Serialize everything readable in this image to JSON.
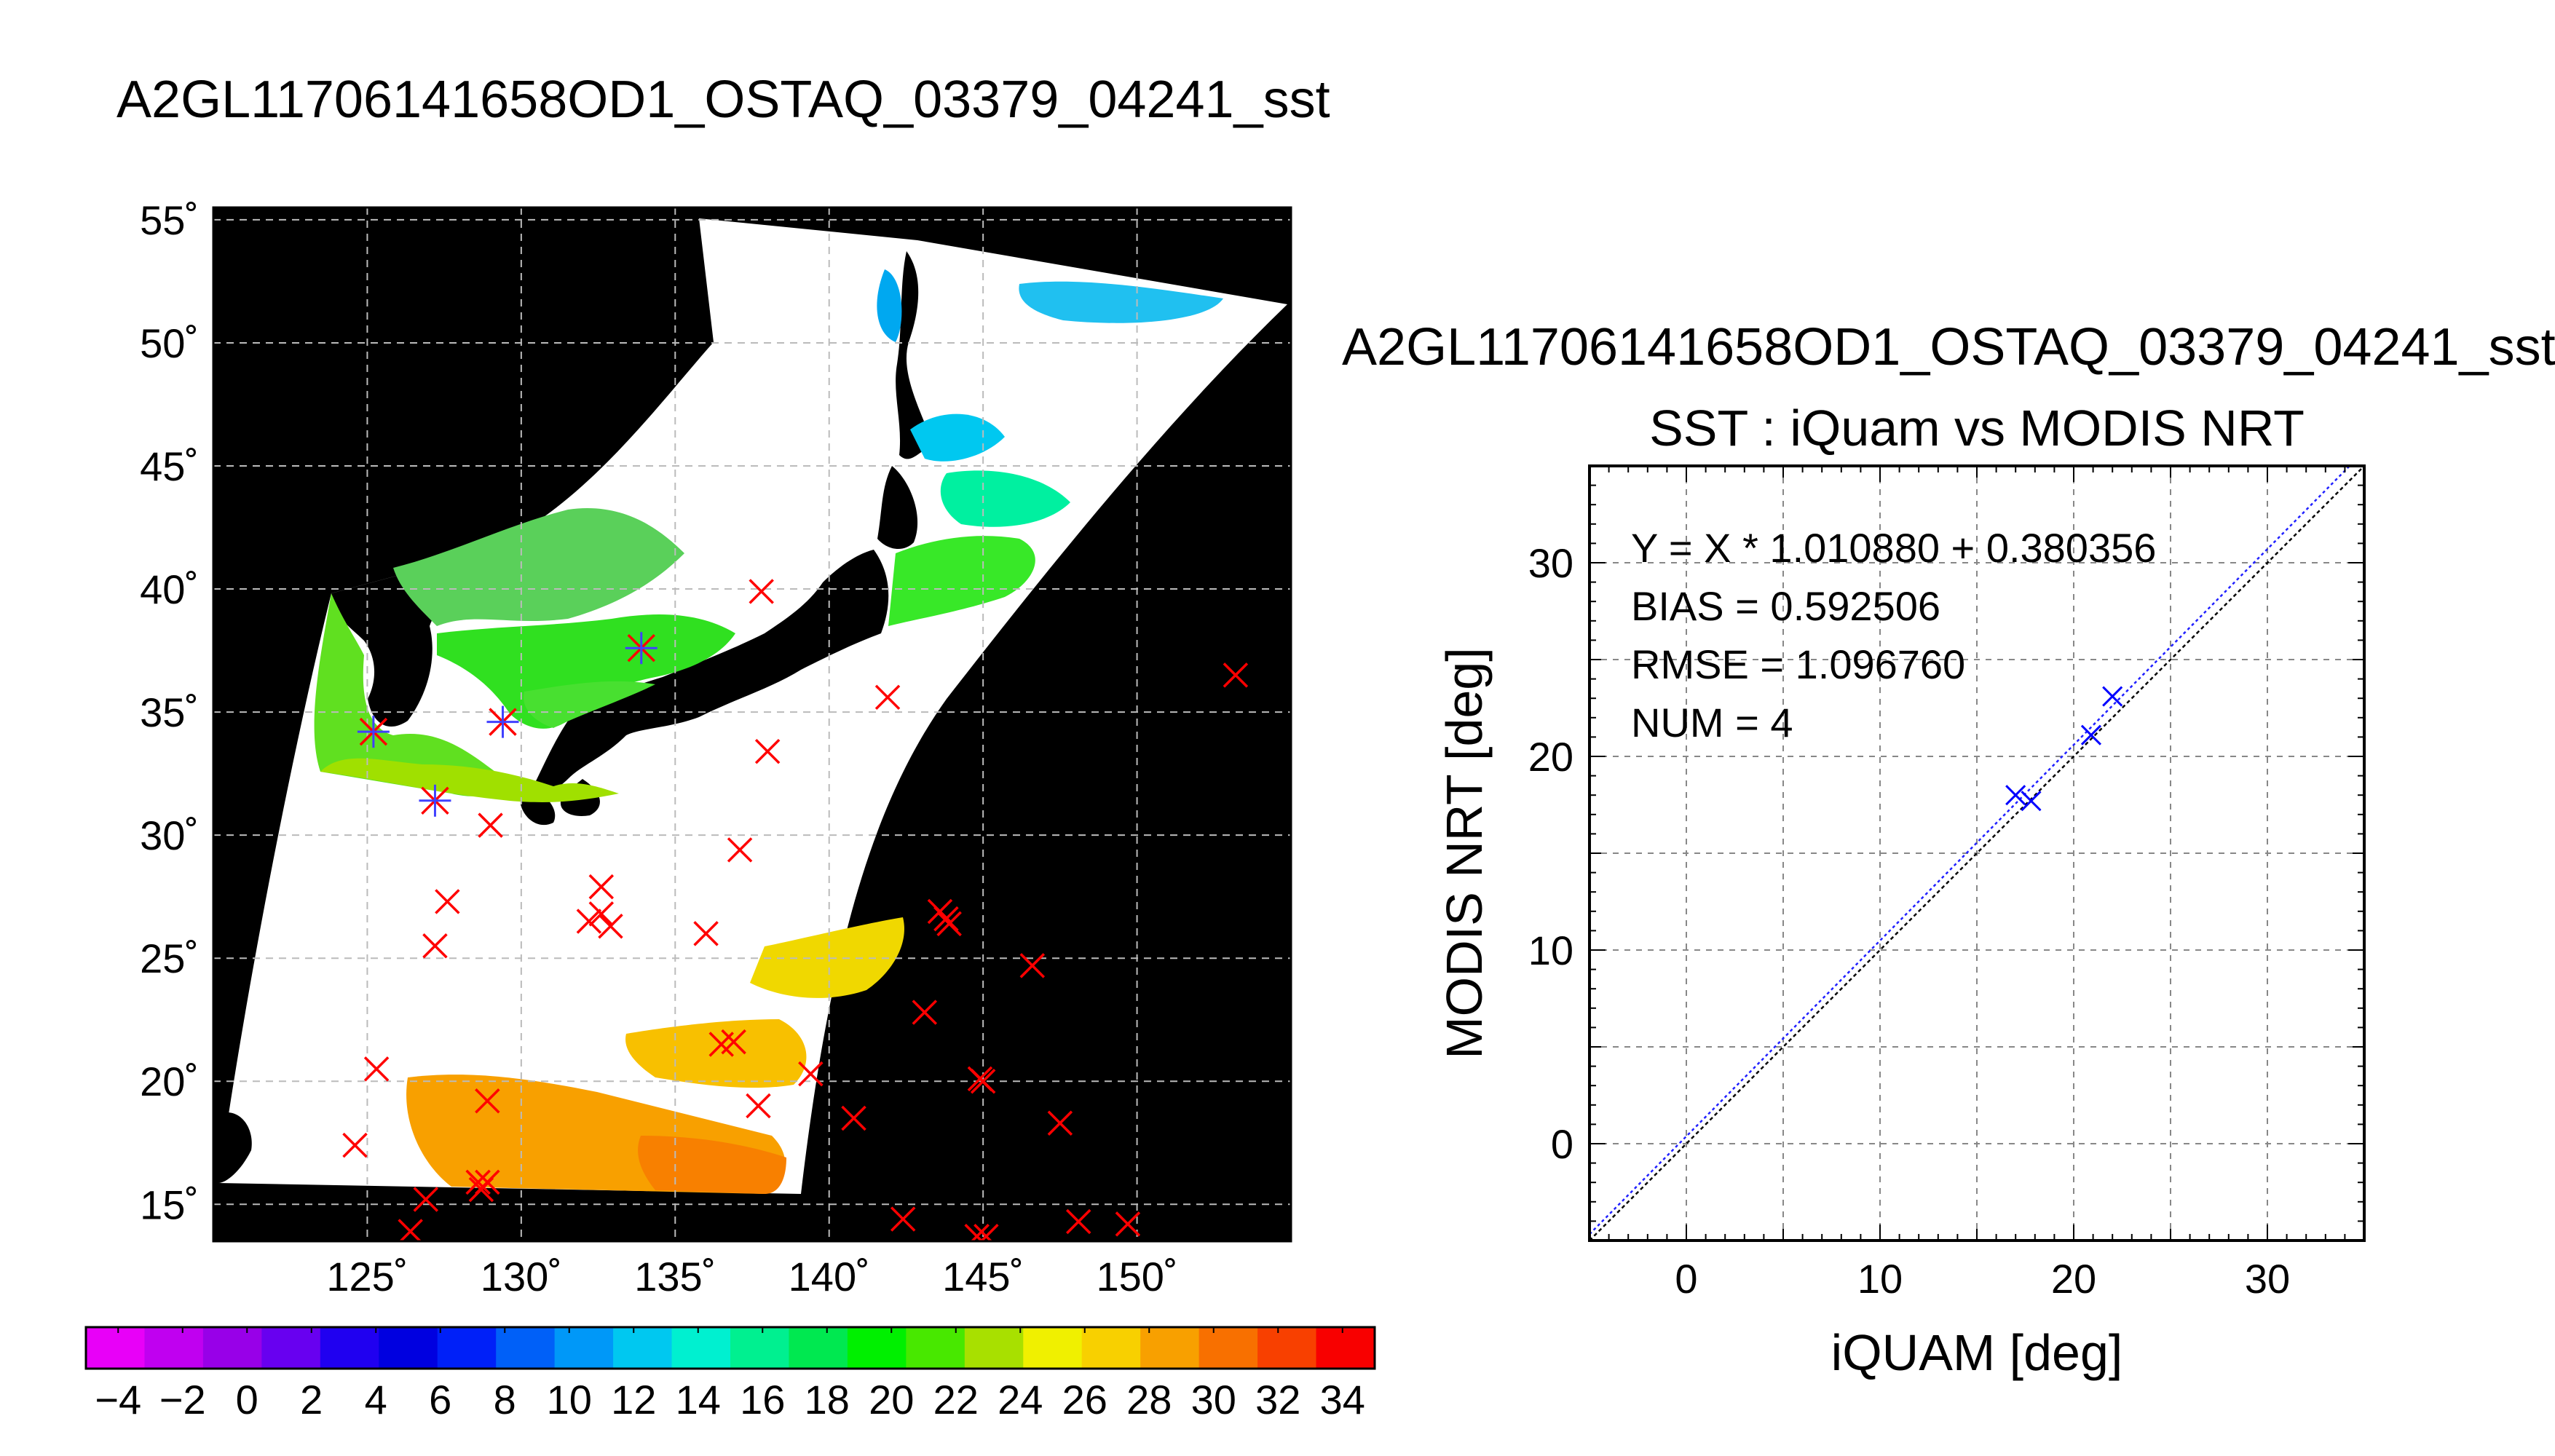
{
  "title": "A2GL11706141658OD1_OSTAQ_03379_04241_sst",
  "map": {
    "lat_ticks": [
      "15˚",
      "20˚",
      "25˚",
      "30˚",
      "35˚",
      "40˚",
      "45˚",
      "50˚",
      "55˚"
    ],
    "lat_values": [
      15,
      20,
      25,
      30,
      35,
      40,
      45,
      50,
      55
    ],
    "lon_ticks": [
      "125˚",
      "130˚",
      "135˚",
      "140˚",
      "145˚",
      "150˚"
    ],
    "lon_values": [
      125,
      130,
      135,
      140,
      145,
      150
    ],
    "lon_range": [
      120,
      155
    ],
    "lat_range": [
      13.5,
      55.5
    ],
    "colors": {
      "background": "#000000",
      "cloud": "#ffffff",
      "iquam_marker": "#ff0000",
      "matched_marker": "#4040ff"
    },
    "iquam_points": [
      [
        137.8,
        39.9
      ],
      [
        153.2,
        36.5
      ],
      [
        141.9,
        35.6
      ],
      [
        138.0,
        33.4
      ],
      [
        129.0,
        30.4
      ],
      [
        137.1,
        29.4
      ],
      [
        127.6,
        27.3
      ],
      [
        127.2,
        25.5
      ],
      [
        132.6,
        27.9
      ],
      [
        132.2,
        26.5
      ],
      [
        132.6,
        26.8
      ],
      [
        132.9,
        26.3
      ],
      [
        136.0,
        26.0
      ],
      [
        143.6,
        26.9
      ],
      [
        143.8,
        26.6
      ],
      [
        143.9,
        26.4
      ],
      [
        146.6,
        24.7
      ],
      [
        143.1,
        22.8
      ],
      [
        136.5,
        21.5
      ],
      [
        136.9,
        21.6
      ],
      [
        139.4,
        20.3
      ],
      [
        125.3,
        20.5
      ],
      [
        128.9,
        19.2
      ],
      [
        144.9,
        20.1
      ],
      [
        145.0,
        20.0
      ],
      [
        137.7,
        19.0
      ],
      [
        140.8,
        18.5
      ],
      [
        147.5,
        18.3
      ],
      [
        124.6,
        17.4
      ],
      [
        128.6,
        15.9
      ],
      [
        128.7,
        15.6
      ],
      [
        128.9,
        15.9
      ],
      [
        126.9,
        15.2
      ],
      [
        142.4,
        14.4
      ],
      [
        148.1,
        14.3
      ],
      [
        149.7,
        14.2
      ],
      [
        145.1,
        13.7
      ],
      [
        126.4,
        13.9
      ],
      [
        144.8,
        13.7
      ]
    ],
    "matched_points": [
      [
        125.2,
        34.2
      ],
      [
        127.2,
        31.4
      ],
      [
        129.4,
        34.6
      ],
      [
        133.9,
        37.6
      ]
    ]
  },
  "colorbar": {
    "labels": [
      "−4",
      "−2",
      "0",
      "2",
      "4",
      "6",
      "8",
      "10",
      "12",
      "14",
      "16",
      "18",
      "20",
      "22",
      "24",
      "26",
      "28",
      "30",
      "32",
      "34"
    ],
    "min": -5,
    "max": 35,
    "step": 2,
    "colors": [
      "#e800f8",
      "#c000f0",
      "#9800e8",
      "#6800f0",
      "#2000f0",
      "#0000e0",
      "#0020f8",
      "#0060f8",
      "#0098f8",
      "#00c8f0",
      "#00f0d0",
      "#00f090",
      "#00e850",
      "#00f000",
      "#48e800",
      "#a8e000",
      "#f0f000",
      "#f8d000",
      "#f8a000",
      "#f87000",
      "#f84000",
      "#f80000"
    ]
  },
  "scatter": {
    "file_label": "A2GL11706141658OD1_OSTAQ_03379_04241_sst",
    "title": "SST : iQuam vs MODIS NRT",
    "xlabel": "iQUAM [deg]",
    "ylabel": "MODIS NRT [deg]",
    "xlim": [
      -5,
      35
    ],
    "ylim": [
      -5,
      35
    ],
    "ticks": [
      0,
      10,
      20,
      30
    ],
    "tick_labels": [
      "0",
      "10",
      "20",
      "30"
    ],
    "grid": true,
    "stats": [
      "Y = X * 1.010880 + 0.380356",
      "BIAS = 0.592506",
      "RMSE = 1.096760",
      "NUM = 4"
    ],
    "fit": {
      "slope": 1.01088,
      "intercept": 0.380356
    },
    "point_color": "#0000ff",
    "points": [
      [
        17.0,
        18.0
      ],
      [
        17.8,
        17.7
      ],
      [
        20.9,
        21.1
      ],
      [
        22.0,
        23.1
      ]
    ]
  }
}
